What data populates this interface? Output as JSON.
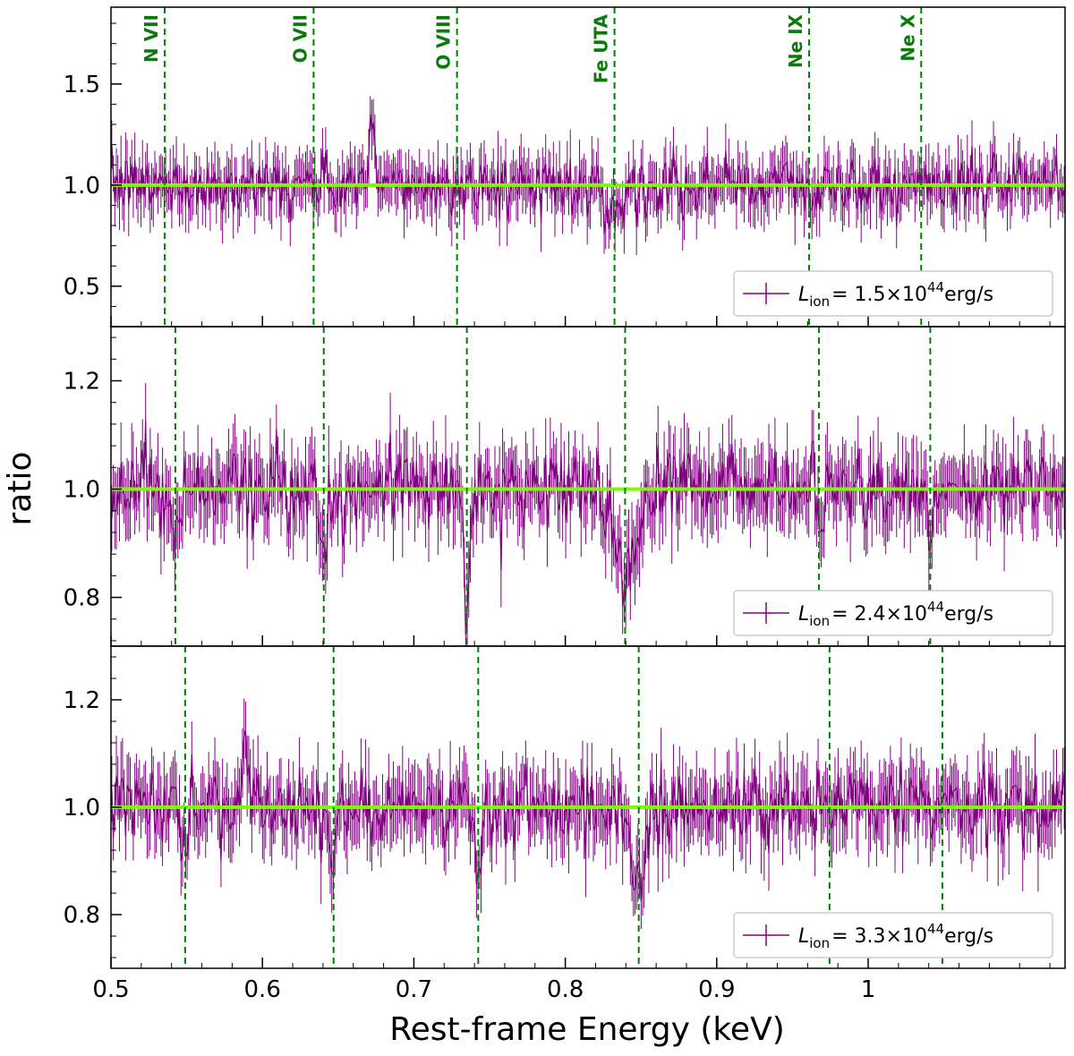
{
  "chart_data": {
    "type": "line",
    "figure_style": "stacked ratio spectra with error bars",
    "xlabel": "Rest-frame Energy (keV)",
    "ylabel": "ratio",
    "xlim": [
      0.5,
      1.13
    ],
    "x_ticks": [
      0.5,
      0.6,
      0.7,
      0.8,
      0.9,
      1.0
    ],
    "x_tick_labels": [
      "0.5",
      "0.6",
      "0.7",
      "0.8",
      "0.9",
      "1"
    ],
    "model_level": 1.0,
    "colors": {
      "data": "#800080",
      "model": "#7cfc00",
      "lines": "#008000"
    },
    "line_ids": [
      "N VII",
      "O VII",
      "O VIII",
      "Fe UTA",
      "Ne IX",
      "Ne X"
    ],
    "panels": [
      {
        "legend": {
          "symbol": "L",
          "subscript": "ion",
          "value": "= 1.5×10",
          "exponent": "44",
          "unit": "erg/s"
        },
        "ylim": [
          0.3,
          1.88
        ],
        "y_ticks": [
          0.5,
          1.0,
          1.5
        ],
        "y_tick_labels": [
          "0.5",
          "1.0",
          "1.5"
        ],
        "line_energies": [
          0.5355,
          0.6338,
          0.7285,
          0.8325,
          0.961,
          1.035
        ],
        "show_line_labels": true,
        "noise_sd": 0.09,
        "features": [
          {
            "energy": 0.672,
            "depth": -0.3,
            "width": 0.0015
          },
          {
            "energy": 0.8325,
            "depth": 0.12,
            "width": 0.006
          },
          {
            "energy": 0.961,
            "depth": 0.08,
            "width": 0.003
          }
        ],
        "series": [
          {
            "name": "L_ion = 1.5×10^44 erg/s",
            "x_range": [
              0.5,
              1.13
            ],
            "mean": 1.0
          }
        ]
      },
      {
        "legend": {
          "symbol": "L",
          "subscript": "ion",
          "value": "= 2.4×10",
          "exponent": "44",
          "unit": "erg/s"
        },
        "ylim": [
          0.71,
          1.3
        ],
        "y_ticks": [
          0.8,
          1.0,
          1.2
        ],
        "y_tick_labels": [
          "0.8",
          "1.0",
          "1.2"
        ],
        "line_energies": [
          0.5425,
          0.6405,
          0.735,
          0.8395,
          0.9675,
          1.041
        ],
        "show_line_labels": false,
        "noise_sd": 0.045,
        "features": [
          {
            "energy": 0.5425,
            "depth": 0.1,
            "width": 0.002
          },
          {
            "energy": 0.6405,
            "depth": 0.12,
            "width": 0.002
          },
          {
            "energy": 0.735,
            "depth": 0.22,
            "width": 0.0018
          },
          {
            "energy": 0.8395,
            "depth": 0.14,
            "width": 0.008
          },
          {
            "energy": 0.9675,
            "depth": 0.08,
            "width": 0.002
          },
          {
            "energy": 1.041,
            "depth": 0.06,
            "width": 0.002
          }
        ],
        "series": [
          {
            "name": "L_ion = 2.4×10^44 erg/s",
            "x_range": [
              0.5,
              1.13
            ],
            "mean": 1.0
          }
        ]
      },
      {
        "legend": {
          "symbol": "L",
          "subscript": "ion",
          "value": "= 3.3×10",
          "exponent": "44",
          "unit": "erg/s"
        },
        "ylim": [
          0.7,
          1.3
        ],
        "y_ticks": [
          0.8,
          1.0,
          1.2
        ],
        "y_tick_labels": [
          "0.8",
          "1.0",
          "1.2"
        ],
        "line_energies": [
          0.549,
          0.647,
          0.7425,
          0.8485,
          0.9745,
          1.049
        ],
        "show_line_labels": false,
        "noise_sd": 0.045,
        "features": [
          {
            "energy": 0.549,
            "depth": 0.1,
            "width": 0.002
          },
          {
            "energy": 0.647,
            "depth": 0.1,
            "width": 0.002
          },
          {
            "energy": 0.7425,
            "depth": 0.14,
            "width": 0.002
          },
          {
            "energy": 0.8485,
            "depth": 0.14,
            "width": 0.004
          },
          {
            "energy": 0.588,
            "depth": -0.14,
            "width": 0.0012
          }
        ],
        "series": [
          {
            "name": "L_ion = 3.3×10^44 erg/s",
            "x_range": [
              0.5,
              1.13
            ],
            "mean": 1.0
          }
        ]
      }
    ]
  }
}
